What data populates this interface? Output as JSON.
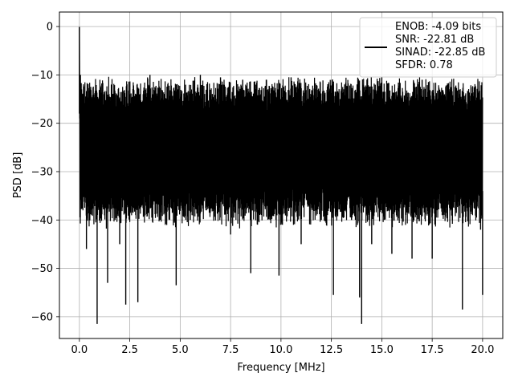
{
  "chart_data": {
    "type": "line",
    "title": "",
    "xlabel": "Frequency [MHz]",
    "ylabel": "PSD [dB]",
    "xlim": [
      -0.99,
      21.0
    ],
    "ylim": [
      -64.5,
      3.0
    ],
    "xticks": [
      0.0,
      2.5,
      5.0,
      7.5,
      10.0,
      12.5,
      15.0,
      17.5,
      20.0
    ],
    "xtick_labels": [
      "0.0",
      "2.5",
      "5.0",
      "7.5",
      "10.0",
      "12.5",
      "15.0",
      "17.5",
      "20.0"
    ],
    "yticks": [
      0,
      -10,
      -20,
      -30,
      -40,
      -50,
      -60
    ],
    "ytick_labels": [
      "0",
      "−10",
      "−20",
      "−30",
      "−40",
      "−50",
      "−60"
    ],
    "grid": true,
    "legend_position": "top-right",
    "legend_entries": [
      "ENOB: -4.09 bits",
      "SNR: -22.81 dB",
      "SINAD: -22.85 dB",
      "SFDR: 0.78"
    ],
    "series": [
      {
        "color": "#000000",
        "noise_band_upper_db": -15,
        "noise_band_lower_db": -37,
        "x": [
          0.0,
          0.02,
          0.05,
          0.1,
          0.2,
          0.35,
          0.5,
          0.88,
          1.0,
          1.4,
          1.5,
          2.0,
          2.3,
          2.5,
          2.9,
          3.0,
          3.5,
          4.0,
          4.2,
          4.8,
          5.0,
          5.5,
          6.0,
          6.3,
          7.0,
          7.5,
          8.1,
          8.5,
          9.0,
          9.9,
          10.0,
          10.5,
          11.0,
          11.5,
          12.0,
          12.6,
          13.0,
          13.5,
          13.9,
          14.0,
          14.2,
          14.5,
          15.0,
          15.5,
          16.0,
          16.5,
          17.0,
          17.5,
          18.0,
          18.5,
          19.0,
          19.5,
          19.9,
          20.0
        ],
        "y": [
          -0.1,
          -19.0,
          -10.0,
          -32.0,
          -16.0,
          -46.0,
          -14.0,
          -61.5,
          -15.0,
          -53.0,
          -14.5,
          -45.0,
          -57.5,
          -14.0,
          -57.0,
          -15.0,
          -10.0,
          -40.0,
          -14.0,
          -53.5,
          -15.0,
          -40.0,
          -10.0,
          -38.0,
          -10.5,
          -43.0,
          -11.0,
          -51.0,
          -14.0,
          -51.5,
          -15.0,
          -10.5,
          -45.0,
          -14.0,
          -40.0,
          -55.5,
          -15.0,
          -40.0,
          -56.0,
          -61.5,
          -15.0,
          -45.0,
          -10.5,
          -47.0,
          -15.0,
          -48.0,
          -11.0,
          -48.0,
          -16.0,
          -40.0,
          -58.5,
          -15.0,
          -42.0,
          -55.5
        ]
      }
    ]
  }
}
